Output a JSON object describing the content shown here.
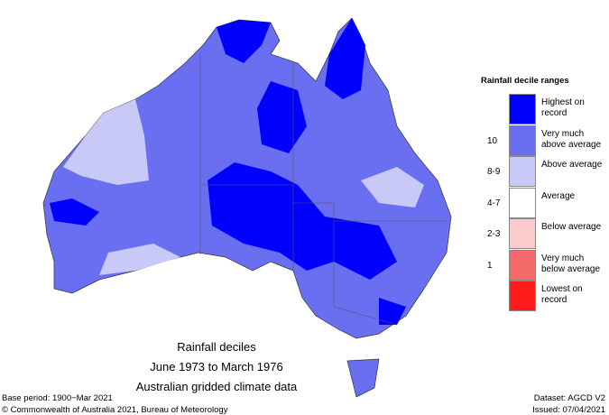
{
  "map": {
    "caption": [
      "Rainfall deciles",
      "June 1973 to March 1976",
      "Australian gridded climate data"
    ]
  },
  "legend": {
    "title": "Rainfall decile ranges",
    "items": [
      {
        "label": "Highest on record",
        "color": "#0000ff"
      },
      {
        "decile": "10",
        "label": "Very much above average",
        "color": "#6a6ff2"
      },
      {
        "decile": "8-9",
        "label": "Above average",
        "color": "#c8c9f7"
      },
      {
        "decile": "4-7",
        "label": "Average",
        "color": "#ffffff"
      },
      {
        "decile": "2-3",
        "label": "Below average",
        "color": "#fbcaca"
      },
      {
        "decile": "1",
        "label": "Very much below average",
        "color": "#f46a6a"
      },
      {
        "label": "Lowest on record",
        "color": "#ff1a1a"
      }
    ]
  },
  "footer": {
    "base_period": "Base period: 1900−Mar 2021",
    "copyright": "© Commonwealth of Australia 2021, Bureau of Meteorology",
    "dataset": "Dataset: AGCD V2",
    "issued": "Issued: 07/04/2021"
  }
}
